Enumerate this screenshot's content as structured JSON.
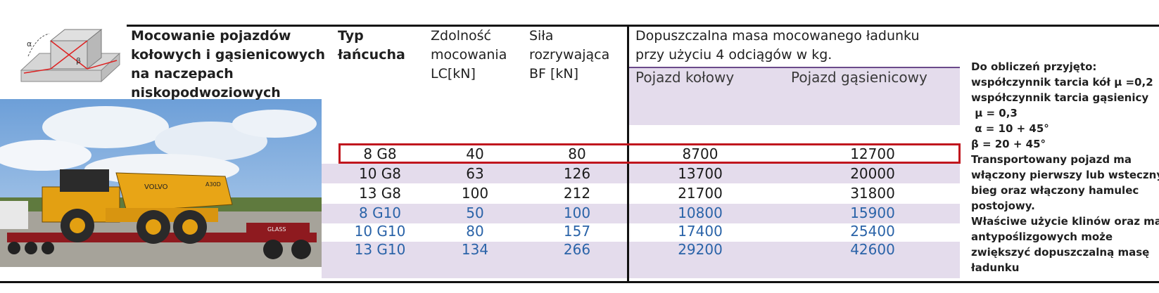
{
  "header": {
    "description_lines": [
      "Mocowanie pojazdów",
      "kołowych i gąsienicowych",
      "na naczepach",
      "niskopodwoziowych"
    ],
    "chain_type_lines": [
      "Typ",
      "łańcucha"
    ],
    "capacity_lines": [
      "Zdolność",
      "mocowania",
      "LC[kN]"
    ],
    "break_force_lines": [
      "Siła",
      "rozrywająca",
      "BF [kN]"
    ],
    "mass_title_lines": [
      "Dopuszczalna masa mocowanego ładunku",
      "przy użyciu 4 odciągów w kg."
    ],
    "wheeled_label": "Pojazd kołowy",
    "tracked_label": "Pojazd gąsienicowy"
  },
  "diagram": {
    "alpha_label": "α",
    "beta_label": "β"
  },
  "photo": {
    "truck_brand": "VOLVO",
    "truck_model": "A30D",
    "trailer_text": "GLASS"
  },
  "rows": [
    {
      "chain": "8 G8",
      "lc": "40",
      "bf": "80",
      "wheeled": "8700",
      "tracked": "12700",
      "highlight": true,
      "color": "#1a1a1a"
    },
    {
      "chain": "10 G8",
      "lc": "63",
      "bf": "126",
      "wheeled": "13700",
      "tracked": "20000",
      "highlight": false,
      "color": "#1a1a1a"
    },
    {
      "chain": "13 G8",
      "lc": "100",
      "bf": "212",
      "wheeled": "21700",
      "tracked": "31800",
      "highlight": false,
      "color": "#1a1a1a"
    },
    {
      "chain": "8 G10",
      "lc": "50",
      "bf": "100",
      "wheeled": "10800",
      "tracked": "15900",
      "highlight": false,
      "color": "#2a63a8"
    },
    {
      "chain": "10 G10",
      "lc": "80",
      "bf": "157",
      "wheeled": "17400",
      "tracked": "25400",
      "highlight": false,
      "color": "#2a63a8"
    },
    {
      "chain": "13 G10",
      "lc": "134",
      "bf": "266",
      "wheeled": "29200",
      "tracked": "42600",
      "highlight": false,
      "color": "#2a63a8"
    }
  ],
  "notes": [
    "Do obliczeń przyjęto:",
    "współczynnik tarcia kół μ =0,2",
    "współczynnik tarcia gąsienicy",
    " μ = 0,3",
    " α = 10 + 45°",
    "β = 20 + 45°",
    "Transportowany pojazd ma",
    "włączony pierwszy lub wsteczny",
    "bieg oraz włączony hamulec",
    "postojowy.",
    "Właściwe użycie klinów oraz mat",
    "antypoślizgowych może",
    "zwiększyć dopuszczalną masę",
    "ładunku"
  ]
}
